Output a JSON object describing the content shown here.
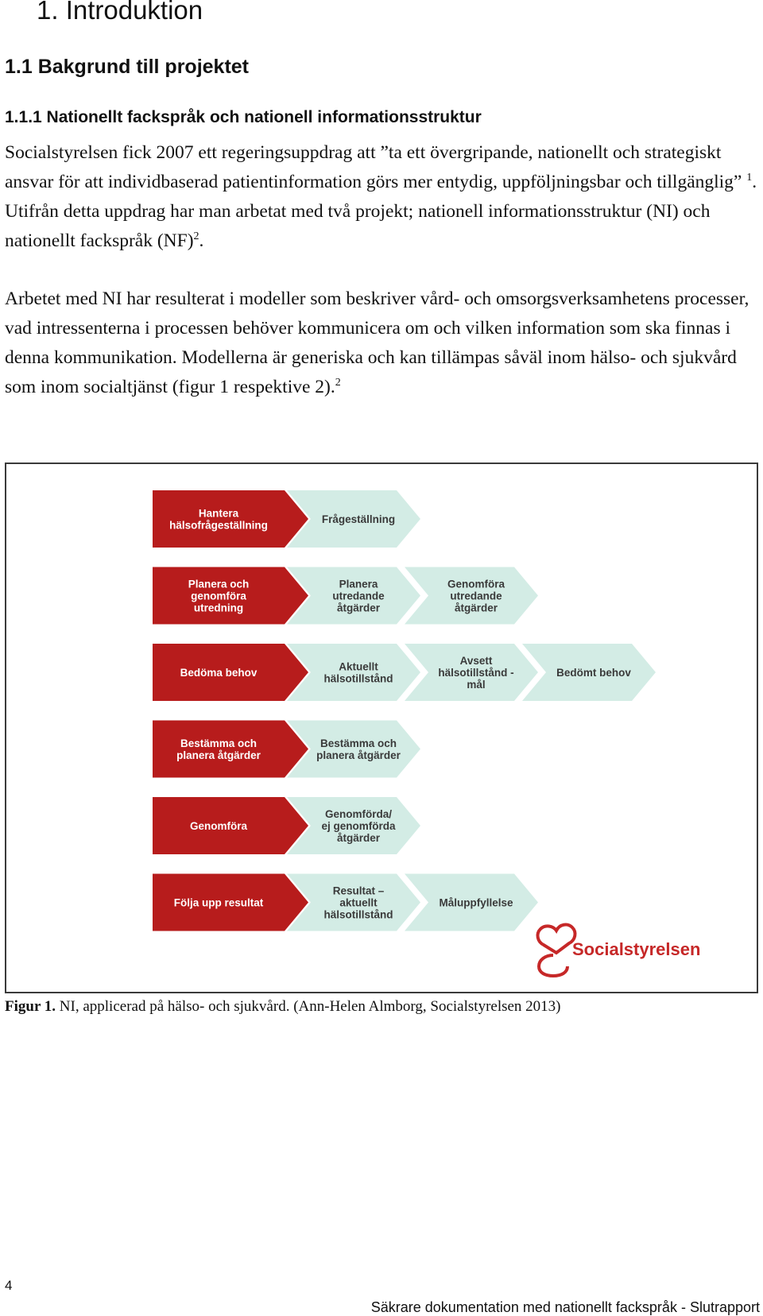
{
  "heading1": "1. Introduktion",
  "heading2": "1.1 Bakgrund till projektet",
  "heading3": "1.1.1 Nationellt fackspråk och nationell informationsstruktur",
  "para1": {
    "part1": "Socialstyrelsen fick 2007 ett regeringsuppdrag att ”ta ett övergripande, nationellt och strategiskt ansvar för att individbaserad patientinformation görs mer entydig, uppföljningsbar och tillgänglig” ",
    "sup1": "1",
    "part2": ". Utifrån detta uppdrag har man arbetat med två projekt; nationell informationsstruktur (NI) och nationellt fackspråk (NF)",
    "sup2": "2",
    "part3": "."
  },
  "para2": {
    "text": "Arbetet med NI har resulterat i modeller som beskriver vård- och omsorgsverksamhetens processer, vad intressenterna i processen behöver kommunicera om och vilken information som ska finnas i denna kommunikation. Modellerna är generiska och kan tillämpas såväl inom hälso- och sjukvård som inom socialtjänst (figur 1 respektive 2).",
    "sup": "2"
  },
  "figure": {
    "colors": {
      "process": "#b71c1c",
      "info": "#d3ece5",
      "process_text": "#ffffff",
      "info_text": "#3a3a3a",
      "logo": "#c62828"
    },
    "rows": [
      {
        "process": [
          "Hantera",
          "hälsofrågeställning"
        ],
        "info": [
          [
            "Frågeställning"
          ]
        ]
      },
      {
        "process": [
          "Planera och",
          "genomföra",
          "utredning"
        ],
        "info": [
          [
            "Planera",
            "utredande",
            "åtgärder"
          ],
          [
            "Genomföra",
            "utredande",
            "åtgärder"
          ]
        ]
      },
      {
        "process": [
          "Bedöma behov"
        ],
        "info": [
          [
            "Aktuellt",
            "hälsotillstånd"
          ],
          [
            "Avsett",
            "hälsotillstånd  -",
            "mål"
          ],
          [
            "Bedömt behov"
          ]
        ]
      },
      {
        "process": [
          "Bestämma och",
          "planera åtgärder"
        ],
        "info": [
          [
            "Bestämma och",
            "planera åtgärder"
          ]
        ]
      },
      {
        "process": [
          "Genomföra"
        ],
        "info": [
          [
            "Genomförda/",
            "ej genomförda",
            "åtgärder"
          ]
        ]
      },
      {
        "process": [
          "Följa upp resultat"
        ],
        "info": [
          [
            "Resultat –",
            "aktuellt",
            "hälsotillstånd"
          ],
          [
            "Måluppfyllelse"
          ]
        ]
      }
    ],
    "logo_text": "Socialstyrelsen"
  },
  "caption": {
    "label": "Figur 1.",
    "text": " NI, applicerad på hälso- och sjukvård. (Ann-Helen Almborg, Socialstyrelsen 2013)"
  },
  "footer": {
    "page_number": "4",
    "title": "Säkrare dokumentation med nationellt fackspråk - Slutrapport"
  }
}
